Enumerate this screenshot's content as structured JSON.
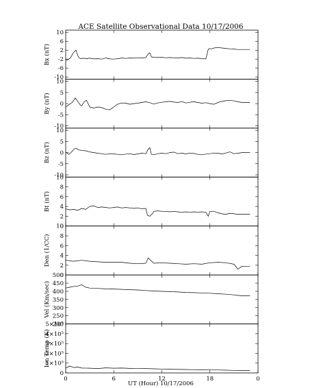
{
  "chart_data": {
    "type": "line",
    "title": "ACE Satellite Observational Data   10/17/2006",
    "xlabel": "UT (Hour)   10/17/2006",
    "x_ticks": [
      "0",
      "6",
      "12",
      "18",
      "0"
    ],
    "xlim": [
      0,
      24
    ],
    "grid": false,
    "legend": "none",
    "panels": [
      {
        "ylabel": "Bx (nT)",
        "ylim": [
          -11,
          11
        ],
        "yticks": [
          "10",
          "6",
          "2",
          "-2",
          "-6",
          "-10"
        ],
        "ytick_values": [
          10,
          6,
          2,
          -2,
          -6,
          -10
        ],
        "series": [
          {
            "x": [
              0,
              0.3,
              0.6,
              0.9,
              1.1,
              1.3,
              1.5,
              1.7,
              1.9,
              2.2,
              2.6,
              3.0,
              3.5,
              4.0,
              4.5,
              5.0,
              5.5,
              6.0,
              6.5,
              7.0,
              7.5,
              8.0,
              8.5,
              9.0,
              9.5,
              10.0,
              10.3,
              10.5,
              10.7,
              11.0,
              11.5,
              12.0,
              12.5,
              13.0,
              13.5,
              14.0,
              14.5,
              15.0,
              15.5,
              16.0,
              16.5,
              17.0,
              17.5,
              17.7,
              17.8,
              18.0,
              18.2,
              18.5,
              19.0,
              19.5,
              20.0,
              20.5,
              21.0,
              21.5,
              22.0,
              23.0
            ],
            "y": [
              -2.5,
              -2.2,
              -1.5,
              0.5,
              1.5,
              2.0,
              -0.5,
              -1.5,
              -1.8,
              -1.6,
              -1.8,
              -1.6,
              -1.9,
              -1.8,
              -2.0,
              -1.5,
              -1.9,
              -2.0,
              -1.8,
              -1.5,
              -1.7,
              -1.5,
              -1.6,
              -1.4,
              -1.5,
              -1.3,
              0.3,
              0.8,
              -1.0,
              -1.2,
              -1.3,
              -1.2,
              -1.4,
              -1.3,
              -1.4,
              -1.5,
              -1.3,
              -1.6,
              -1.5,
              -1.7,
              -1.6,
              -1.8,
              -1.9,
              1.0,
              2.5,
              2.7,
              2.6,
              3.0,
              3.2,
              3.0,
              2.8,
              2.6,
              2.5,
              2.3,
              2.3,
              2.3
            ]
          }
        ]
      },
      {
        "ylabel": "By (nT)",
        "ylim": [
          -11,
          11
        ],
        "yticks": [
          "10",
          "5",
          "0",
          "-5",
          "-10"
        ],
        "ytick_values": [
          10,
          5,
          0,
          -5,
          -10
        ],
        "series": [
          {
            "x": [
              0,
              0.4,
              0.8,
              1.0,
              1.2,
              1.5,
              1.8,
              2.0,
              2.3,
              2.6,
              3.0,
              3.5,
              4.0,
              4.5,
              5.0,
              5.5,
              6.0,
              6.5,
              7.0,
              7.5,
              8.0,
              8.5,
              9.0,
              9.5,
              10.0,
              10.5,
              11.0,
              11.5,
              12.0,
              12.5,
              13.0,
              13.5,
              14.0,
              14.5,
              15.0,
              15.5,
              16.0,
              16.5,
              17.0,
              17.5,
              18.0,
              18.5,
              19.0,
              19.5,
              20.0,
              20.5,
              21.0,
              21.5,
              22.0,
              23.0
            ],
            "y": [
              -1.5,
              -0.5,
              0.5,
              1.5,
              2.5,
              1.0,
              -0.5,
              -1.0,
              0.8,
              1.5,
              -1.5,
              -2.0,
              -1.5,
              -1.8,
              -2.5,
              -2.8,
              -1.5,
              -0.2,
              0.3,
              0.2,
              -0.3,
              0.0,
              0.2,
              0.5,
              0.8,
              0.4,
              -0.2,
              0.3,
              0.6,
              0.8,
              1.0,
              0.7,
              0.5,
              0.9,
              0.3,
              0.6,
              0.8,
              0.5,
              0.2,
              0.4,
              0.0,
              -0.3,
              0.5,
              1.0,
              1.3,
              1.5,
              1.2,
              0.8,
              0.5,
              0.5
            ]
          }
        ]
      },
      {
        "ylabel": "Bz (nT)",
        "ylim": [
          -11,
          11
        ],
        "yticks": [
          "10",
          "5",
          "0",
          "-5",
          "-10"
        ],
        "ytick_values": [
          10,
          5,
          0,
          -5,
          -10
        ],
        "series": [
          {
            "x": [
              0,
              0.4,
              0.8,
              1.0,
              1.3,
              1.6,
              2.0,
              2.5,
              3.0,
              3.5,
              4.0,
              4.5,
              5.0,
              5.5,
              6.0,
              6.5,
              7.0,
              7.5,
              8.0,
              8.5,
              9.0,
              9.5,
              10.0,
              10.3,
              10.5,
              10.7,
              11.0,
              11.5,
              12.0,
              12.5,
              13.0,
              13.5,
              14.0,
              14.5,
              15.0,
              15.5,
              16.0,
              16.5,
              17.0,
              17.5,
              18.0,
              18.5,
              19.0,
              19.5,
              20.0,
              20.5,
              21.0,
              21.5,
              22.0,
              23.0
            ],
            "y": [
              0.2,
              -0.8,
              0.5,
              1.5,
              2.0,
              1.2,
              1.0,
              0.8,
              0.3,
              0.0,
              -0.3,
              -0.5,
              -0.8,
              -0.5,
              -0.6,
              -0.8,
              -1.0,
              -0.7,
              -0.5,
              -0.9,
              -0.6,
              -0.3,
              -0.5,
              1.5,
              2.2,
              -0.8,
              -1.0,
              -0.5,
              -0.3,
              -0.5,
              0.0,
              0.2,
              -0.5,
              -0.3,
              -0.6,
              -0.2,
              -0.4,
              -0.8,
              -1.0,
              -0.7,
              -0.5,
              -0.2,
              -0.3,
              -0.6,
              -0.2,
              0.3,
              -0.5,
              -0.3,
              0.0,
              0.0
            ]
          }
        ]
      },
      {
        "ylabel": "Bt (nT)",
        "ylim": [
          0,
          10
        ],
        "yticks": [
          "10",
          "8",
          "6",
          "4",
          "2",
          "0"
        ],
        "ytick_values": [
          10,
          8,
          6,
          4,
          2,
          0
        ],
        "series": [
          {
            "x": [
              0,
              0.5,
              1.0,
              1.5,
              2.0,
              2.5,
              3.0,
              3.5,
              4.0,
              4.5,
              5.0,
              5.5,
              6.0,
              6.5,
              7.0,
              7.5,
              8.0,
              8.5,
              9.0,
              9.5,
              10.0,
              10.2,
              10.5,
              10.8,
              11.0,
              11.5,
              12.0,
              12.5,
              13.0,
              13.5,
              14.0,
              14.5,
              15.0,
              15.5,
              16.0,
              16.5,
              17.0,
              17.5,
              17.8,
              18.0,
              18.5,
              19.0,
              19.5,
              20.0,
              20.5,
              21.0,
              21.5,
              22.0,
              23.0
            ],
            "y": [
              3.5,
              3.3,
              3.4,
              3.2,
              3.6,
              3.4,
              4.0,
              4.1,
              3.8,
              3.9,
              3.8,
              3.7,
              3.8,
              3.9,
              3.7,
              3.8,
              3.7,
              3.6,
              3.7,
              3.5,
              3.6,
              2.2,
              2.0,
              2.5,
              3.0,
              3.1,
              3.0,
              3.0,
              2.9,
              3.0,
              2.9,
              2.8,
              2.9,
              2.8,
              2.9,
              2.8,
              2.9,
              2.8,
              2.0,
              3.0,
              3.0,
              2.7,
              2.5,
              2.4,
              2.6,
              2.5,
              2.4,
              2.4,
              2.4
            ]
          }
        ]
      },
      {
        "ylabel": "Den (1/CC)",
        "ylim": [
          0,
          10
        ],
        "yticks": [
          "10",
          "8",
          "6",
          "4",
          "2",
          "0"
        ],
        "ytick_values": [
          10,
          8,
          6,
          4,
          2,
          0
        ],
        "series": [
          {
            "x": [
              0,
              1,
              2,
              3,
              4,
              5,
              6,
              7,
              8,
              9,
              10,
              10.3,
              10.6,
              11,
              12,
              13,
              14,
              15,
              16,
              17,
              18,
              19,
              20,
              21,
              21.5,
              22,
              23
            ],
            "y": [
              3.0,
              2.8,
              3.0,
              2.8,
              2.7,
              2.6,
              2.6,
              2.6,
              2.4,
              2.3,
              2.4,
              3.5,
              3.0,
              2.4,
              2.5,
              2.4,
              2.3,
              2.2,
              2.3,
              2.2,
              2.5,
              2.6,
              2.5,
              2.2,
              1.2,
              1.8,
              1.8
            ]
          }
        ]
      },
      {
        "ylabel": "Vel (Km/sec)",
        "ylim": [
          200,
          500
        ],
        "yticks": [
          "500",
          "450",
          "400",
          "350",
          "300",
          "250",
          "200"
        ],
        "ytick_values": [
          500,
          450,
          400,
          350,
          300,
          250,
          200
        ],
        "series": [
          {
            "x": [
              0,
              0.5,
              1.0,
              1.5,
              2.0,
              2.5,
              3.0,
              4.0,
              5.0,
              6.0,
              7.0,
              8.0,
              9.0,
              10.0,
              11.0,
              12.0,
              13.0,
              14.0,
              15.0,
              16.0,
              17.0,
              18.0,
              19.0,
              20.0,
              21.0,
              21.5,
              22.0,
              23.0
            ],
            "y": [
              420,
              425,
              430,
              432,
              440,
              425,
              420,
              418,
              415,
              414,
              412,
              410,
              408,
              405,
              402,
              400,
              398,
              396,
              393,
              392,
              390,
              388,
              385,
              382,
              378,
              375,
              372,
              372
            ]
          }
        ]
      },
      {
        "ylabel": "Ion Temp (K)",
        "ylim": [
          0,
          500000
        ],
        "yticks": [
          "5×10⁵",
          "4×10⁵",
          "3×10⁵",
          "2×10⁵",
          "1×10⁵",
          "0"
        ],
        "ytick_values": [
          500000,
          400000,
          300000,
          200000,
          100000,
          0
        ],
        "series": [
          {
            "x": [
              0,
              0.5,
              1.0,
              1.5,
              2.0,
              3.0,
              4.0,
              5.0,
              6.0,
              7.0,
              8.0,
              9.0,
              10.0,
              11.0,
              12.0,
              13.0,
              14.0,
              15.0,
              16.0,
              17.0,
              18.0,
              19.0,
              20.0,
              21.0,
              22.0,
              23.0
            ],
            "y": [
              50000,
              70000,
              55000,
              60000,
              50000,
              48000,
              45000,
              52000,
              48000,
              50000,
              46000,
              44000,
              45000,
              42000,
              40000,
              38000,
              36000,
              35000,
              33000,
              32000,
              30000,
              30000,
              28000,
              26000,
              25000,
              25000
            ]
          }
        ]
      }
    ]
  }
}
